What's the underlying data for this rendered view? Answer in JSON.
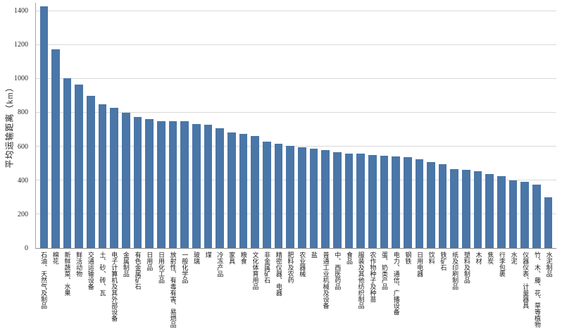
{
  "chart_data": {
    "type": "bar",
    "title": "",
    "xlabel": "",
    "ylabel": "平均运输距离（km）",
    "ylim": [
      0,
      1450
    ],
    "yticks": [
      0,
      200,
      400,
      600,
      800,
      1000,
      1200,
      1400
    ],
    "grid": true,
    "legend": "none",
    "bar_color": "#4a76a8",
    "grid_color": "#d9d9d9",
    "categories": [
      "石油、天然气及制品",
      "棉花",
      "新鲜蔬菜、水果",
      "鲜活动物",
      "交通运输设备",
      "土、砂、砖、瓦",
      "电子计算机及其外部设备",
      "金属制品",
      "有色金属矿石",
      "日用品",
      "日用化工品",
      "放射性、有毒有害、易燃品",
      "一般化学品",
      "玻璃",
      "煤",
      "冷冻产品",
      "家具",
      "粮食",
      "文化体育用品",
      "非金属矿石",
      "精密仪器、电器",
      "肥料及农药",
      "农业器械",
      "盐",
      "普通工业机械及设备",
      "中、西医药品",
      "食品",
      "服装及其他纺织制品",
      "农作物种子及种苗",
      "蛋、奶类产品",
      "电力、通信、广播设备",
      "钢铁",
      "日用电器",
      "饮料",
      "铁矿石",
      "纸及印刷制品",
      "塑料及制品",
      "木材",
      "焦炭",
      "行李包裹",
      "水泥",
      "仪器仪表、计量器具",
      "竹、木、藤、花、草等植物",
      "水泥制品"
    ],
    "values": [
      1430,
      1175,
      1005,
      965,
      900,
      850,
      830,
      800,
      775,
      762,
      752,
      750,
      748,
      735,
      730,
      710,
      685,
      675,
      662,
      630,
      618,
      605,
      595,
      588,
      580,
      565,
      560,
      557,
      552,
      547,
      542,
      537,
      527,
      508,
      495,
      467,
      462,
      455,
      437,
      427,
      400,
      392,
      375,
      300
    ]
  }
}
